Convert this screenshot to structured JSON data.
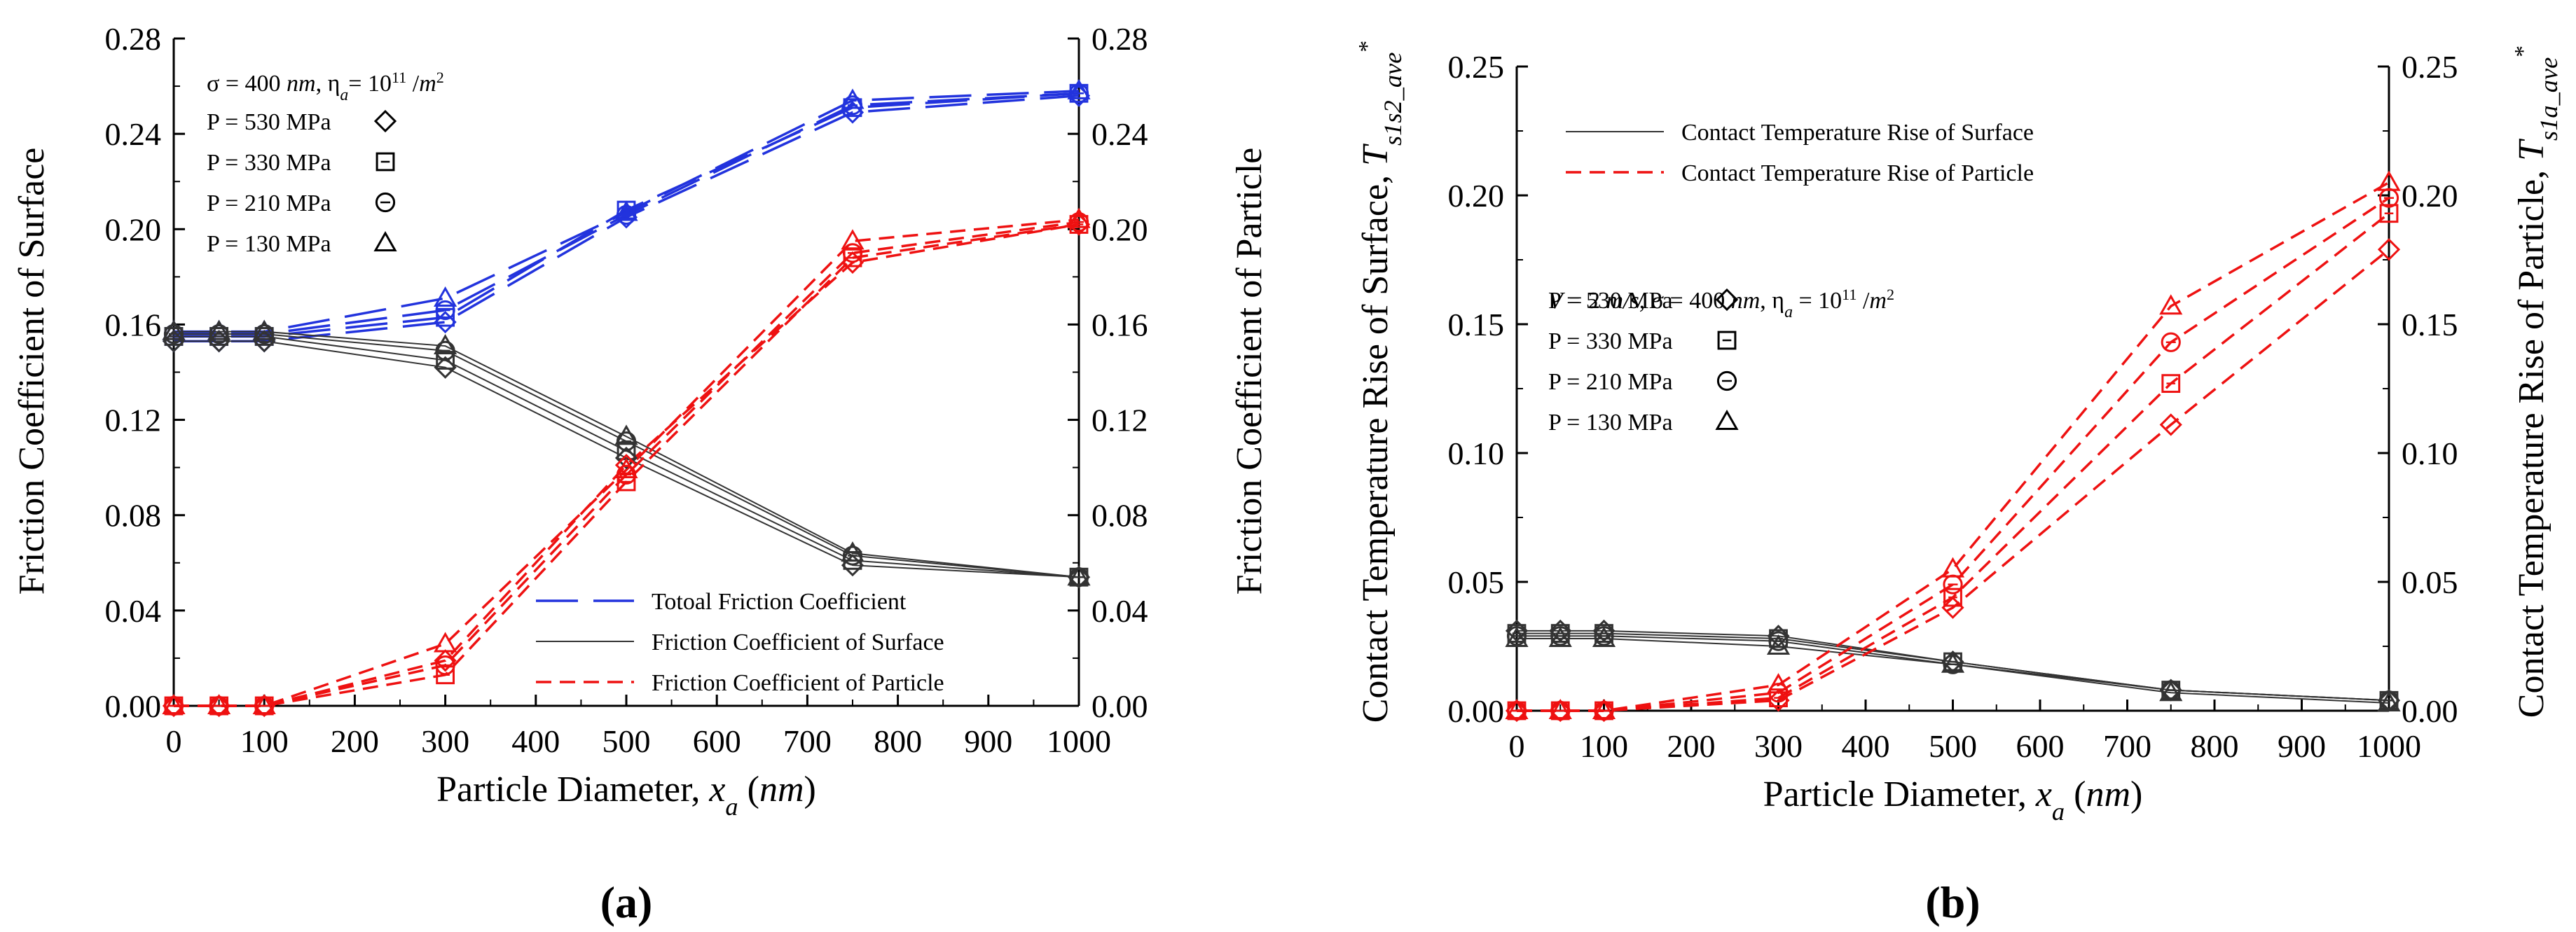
{
  "chart_data": [
    {
      "type": "line",
      "panel": "(a)",
      "xlabel": "Particle Diameter, x_a (nm)",
      "ylabel_left": "Friction Coefficient of Surface",
      "ylabel_right": "Friction Coefficient of Particle",
      "xlim": [
        0,
        1000
      ],
      "ylim": [
        0,
        0.28
      ],
      "xticks": [
        "0",
        "100",
        "200",
        "300",
        "400",
        "500",
        "600",
        "700",
        "800",
        "900",
        "1000"
      ],
      "yticks": [
        "0.00",
        "0.04",
        "0.08",
        "0.12",
        "0.16",
        "0.20",
        "0.24",
        "0.28"
      ],
      "annotation_title": "σ = 400 nm, ηa = 10¹¹ /m²",
      "pressure_labels": [
        "P = 530 MPa",
        "P = 330 MPa",
        "P = 210 MPa",
        "P = 130 MPa"
      ],
      "legend": [
        "Totoal Friction Coefficient",
        "Friction Coefficient of Surface",
        "Friction Coefficient of Particle"
      ],
      "x": [
        0,
        50,
        100,
        300,
        500,
        750,
        1000
      ],
      "series": [
        {
          "group": "total",
          "pressure": "530 MPa",
          "marker": "diamond",
          "color": "#2233dd",
          "values": [
            0.153,
            0.153,
            0.153,
            0.161,
            0.205,
            0.249,
            0.256
          ]
        },
        {
          "group": "total",
          "pressure": "330 MPa",
          "marker": "square",
          "color": "#2233dd",
          "values": [
            0.155,
            0.155,
            0.155,
            0.163,
            0.208,
            0.251,
            0.257
          ]
        },
        {
          "group": "total",
          "pressure": "210 MPa",
          "marker": "circle",
          "color": "#2233dd",
          "values": [
            0.156,
            0.156,
            0.156,
            0.166,
            0.206,
            0.252,
            0.257
          ]
        },
        {
          "group": "total",
          "pressure": "130 MPa",
          "marker": "triangle",
          "color": "#2233dd",
          "values": [
            0.157,
            0.157,
            0.157,
            0.171,
            0.207,
            0.254,
            0.258
          ]
        },
        {
          "group": "surface",
          "pressure": "530 MPa",
          "marker": "diamond",
          "color": "#333333",
          "values": [
            0.153,
            0.153,
            0.153,
            0.142,
            0.104,
            0.059,
            0.054
          ]
        },
        {
          "group": "surface",
          "pressure": "330 MPa",
          "marker": "square",
          "color": "#333333",
          "values": [
            0.155,
            0.155,
            0.155,
            0.145,
            0.107,
            0.061,
            0.054
          ]
        },
        {
          "group": "surface",
          "pressure": "210 MPa",
          "marker": "circle",
          "color": "#333333",
          "values": [
            0.156,
            0.156,
            0.156,
            0.149,
            0.111,
            0.063,
            0.054
          ]
        },
        {
          "group": "surface",
          "pressure": "130 MPa",
          "marker": "triangle",
          "color": "#333333",
          "values": [
            0.157,
            0.157,
            0.157,
            0.151,
            0.113,
            0.064,
            0.054
          ]
        },
        {
          "group": "particle",
          "pressure": "530 MPa",
          "marker": "diamond",
          "color": "#ee1111",
          "values": [
            0,
            0,
            0,
            0.019,
            0.101,
            0.186,
            0.202
          ]
        },
        {
          "group": "particle",
          "pressure": "330 MPa",
          "marker": "square",
          "color": "#ee1111",
          "values": [
            0,
            0,
            0,
            0.013,
            0.094,
            0.188,
            0.202
          ]
        },
        {
          "group": "particle",
          "pressure": "210 MPa",
          "marker": "circle",
          "color": "#ee1111",
          "values": [
            0,
            0,
            0,
            0.017,
            0.097,
            0.19,
            0.203
          ]
        },
        {
          "group": "particle",
          "pressure": "130 MPa",
          "marker": "triangle",
          "color": "#ee1111",
          "values": [
            0,
            0,
            0,
            0.026,
            0.099,
            0.195,
            0.204
          ]
        }
      ]
    },
    {
      "type": "line",
      "panel": "(b)",
      "xlabel": "Particle Diameter, x_a (nm)",
      "ylabel_left": "Contact Temperature Rise of Surface, T*_s1s2_ave",
      "ylabel_right": "Contact Temperature Rise of Particle, T*_s1a_ave",
      "xlim": [
        0,
        1000
      ],
      "ylim": [
        0,
        0.25
      ],
      "xticks": [
        "0",
        "100",
        "200",
        "300",
        "400",
        "500",
        "600",
        "700",
        "800",
        "900",
        "1000"
      ],
      "yticks": [
        "0.00",
        "0.05",
        "0.10",
        "0.15",
        "0.20",
        "0.25"
      ],
      "annotation_title": "V = 2 m/s, σ = 400 nm, ηa = 10¹¹ /m²",
      "pressure_labels": [
        "P = 530 MPa",
        "P = 330 MPa",
        "P = 210 MPa",
        "P = 130 MPa"
      ],
      "legend": [
        "Contact Temperature Rise of Surface",
        "Contact Temperature Rise of Particle"
      ],
      "x": [
        0,
        50,
        100,
        300,
        500,
        750,
        1000
      ],
      "series": [
        {
          "group": "surface",
          "pressure": "530 MPa",
          "marker": "diamond",
          "color": "#333333",
          "values": [
            0.031,
            0.031,
            0.031,
            0.029,
            0.019,
            0.008,
            0.004
          ]
        },
        {
          "group": "surface",
          "pressure": "330 MPa",
          "marker": "square",
          "color": "#333333",
          "values": [
            0.03,
            0.03,
            0.03,
            0.028,
            0.019,
            0.008,
            0.004
          ]
        },
        {
          "group": "surface",
          "pressure": "210 MPa",
          "marker": "circle",
          "color": "#333333",
          "values": [
            0.029,
            0.029,
            0.029,
            0.027,
            0.018,
            0.008,
            0.004
          ]
        },
        {
          "group": "surface",
          "pressure": "130 MPa",
          "marker": "triangle",
          "color": "#333333",
          "values": [
            0.028,
            0.028,
            0.028,
            0.025,
            0.018,
            0.007,
            0.003
          ]
        },
        {
          "group": "particle",
          "pressure": "530 MPa",
          "marker": "diamond",
          "color": "#ee1111",
          "values": [
            0,
            0,
            0,
            0.004,
            0.04,
            0.111,
            0.179
          ]
        },
        {
          "group": "particle",
          "pressure": "330 MPa",
          "marker": "square",
          "color": "#ee1111",
          "values": [
            0,
            0,
            0,
            0.005,
            0.044,
            0.127,
            0.193
          ]
        },
        {
          "group": "particle",
          "pressure": "210 MPa",
          "marker": "circle",
          "color": "#ee1111",
          "values": [
            0,
            0,
            0,
            0.007,
            0.049,
            0.143,
            0.199
          ]
        },
        {
          "group": "particle",
          "pressure": "130 MPa",
          "marker": "triangle",
          "color": "#ee1111",
          "values": [
            0,
            0,
            0,
            0.01,
            0.055,
            0.157,
            0.205
          ]
        }
      ]
    }
  ]
}
